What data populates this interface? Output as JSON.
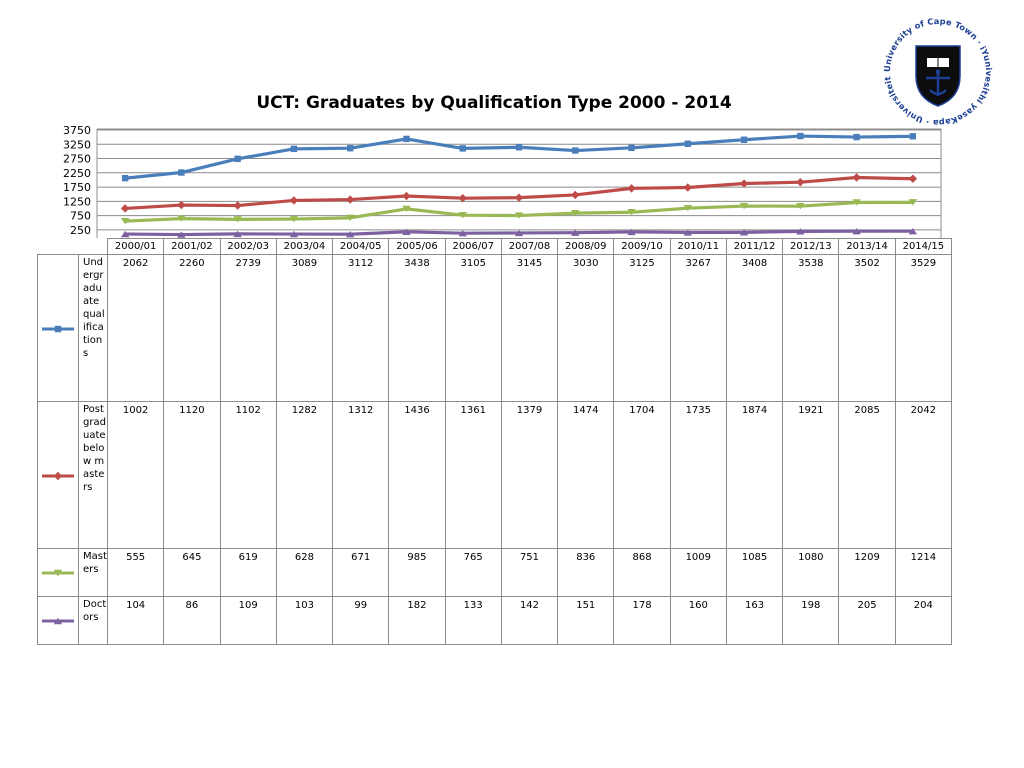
{
  "chart_data": {
    "type": "line",
    "title": "UCT: Graduates by Qualification Type 2000 - 2014",
    "categories": [
      "2000/01",
      "2001/02",
      "2002/03",
      "2003/04",
      "2004/05",
      "2005/06",
      "2006/07",
      "2007/08",
      "2008/09",
      "2009/10",
      "2010/11",
      "2011/12",
      "2012/13",
      "2013/14",
      "2014/15"
    ],
    "y_ticks": [
      250,
      750,
      1250,
      1750,
      2250,
      2750,
      3250,
      3750
    ],
    "ylim": [
      0,
      3750
    ],
    "grid": true,
    "legend": "data-table",
    "series": [
      {
        "name": "Undergraduate qualifications",
        "color": "#4a7ebb",
        "marker": "square",
        "values": [
          2062,
          2260,
          2739,
          3089,
          3112,
          3438,
          3105,
          3145,
          3030,
          3125,
          3267,
          3408,
          3538,
          3502,
          3529
        ]
      },
      {
        "name": "Postgraduate below masters",
        "color": "#be4b48",
        "marker": "diamond",
        "values": [
          1002,
          1120,
          1102,
          1282,
          1312,
          1436,
          1361,
          1379,
          1474,
          1704,
          1735,
          1874,
          1921,
          2085,
          2042
        ]
      },
      {
        "name": "Masters",
        "color": "#98b954",
        "marker": "triangle-down",
        "values": [
          555,
          645,
          619,
          628,
          671,
          985,
          765,
          751,
          836,
          868,
          1009,
          1085,
          1080,
          1209,
          1214
        ]
      },
      {
        "name": "Doctors",
        "color": "#7d60a0",
        "marker": "triangle-up",
        "values": [
          104,
          86,
          109,
          103,
          99,
          182,
          133,
          142,
          151,
          178,
          160,
          163,
          198,
          205,
          204
        ]
      }
    ]
  },
  "logo": {
    "ring_text": "University of Cape Town · iYunivesithi yaseKapa · Universiteit van Kaapstad ·",
    "color": "#1c3f94",
    "icon": "uct-crest-icon"
  }
}
